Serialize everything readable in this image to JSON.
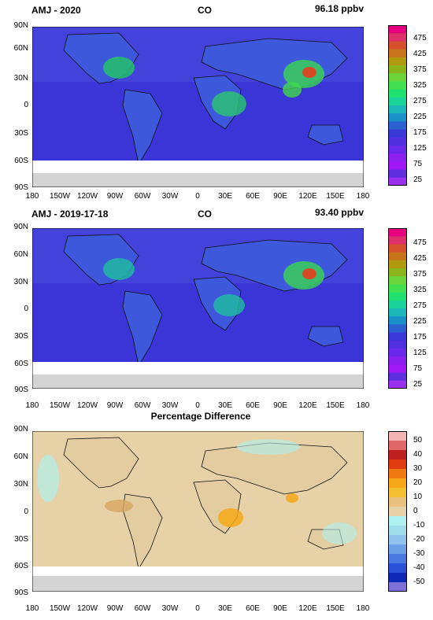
{
  "panels": [
    {
      "left": "AMJ - 2020",
      "center": "CO",
      "right": "96.18 ppbv",
      "top_label": ""
    },
    {
      "left": "AMJ - 2019-17-18",
      "center": "CO",
      "right": "93.40 ppbv",
      "top_label": ""
    },
    {
      "left": "",
      "center": "",
      "right": "",
      "top_label": "Percentage Difference"
    }
  ],
  "lat_labels": [
    "90N",
    "60N",
    "30N",
    "0",
    "30S",
    "60S",
    "90S"
  ],
  "lon_labels": [
    "180",
    "150W",
    "120W",
    "90W",
    "60W",
    "30W",
    "0",
    "30E",
    "60E",
    "90E",
    "120E",
    "150E",
    "180"
  ],
  "co_colorbar": {
    "labels": [
      "475",
      "425",
      "375",
      "325",
      "275",
      "225",
      "175",
      "125",
      "75",
      "25"
    ],
    "colors": [
      "#e6007e",
      "#e0306c",
      "#d6502c",
      "#c8741c",
      "#b29a10",
      "#8ab41a",
      "#6ad43a",
      "#40e050",
      "#20e070",
      "#1ad39a",
      "#1ab8b8",
      "#1a90c8",
      "#2a60d0",
      "#3a38d8",
      "#5030e0",
      "#6a28ea",
      "#8a20f0",
      "#a018f8",
      "#6030e0",
      "#9a30f0"
    ]
  },
  "diff_colorbar": {
    "labels": [
      "50",
      "40",
      "30",
      "20",
      "10",
      "0",
      "-10",
      "-20",
      "-30",
      "-40",
      "-50"
    ],
    "colors": [
      "#f5b5b5",
      "#e06868",
      "#c02020",
      "#e03a10",
      "#f07a10",
      "#f6a818",
      "#f4c030",
      "#e8c080",
      "#e6d2a6",
      "#b0f0f0",
      "#a0dcea",
      "#90c4ec",
      "#6ea0e8",
      "#4a78e0",
      "#2a50d8",
      "#1028b8",
      "#7e70d8"
    ]
  }
}
